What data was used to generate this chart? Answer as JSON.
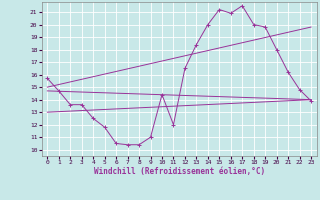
{
  "background_color": "#c8e8e8",
  "grid_color": "#ffffff",
  "line_color": "#993399",
  "marker_color": "#993399",
  "xlabel": "Windchill (Refroidissement éolien,°C)",
  "ylabel_ticks": [
    10,
    11,
    12,
    13,
    14,
    15,
    16,
    17,
    18,
    19,
    20,
    21
  ],
  "xlabel_ticks": [
    0,
    1,
    2,
    3,
    4,
    5,
    6,
    7,
    8,
    9,
    10,
    11,
    12,
    13,
    14,
    15,
    16,
    17,
    18,
    19,
    20,
    21,
    22,
    23
  ],
  "xlim": [
    -0.5,
    23.5
  ],
  "ylim": [
    9.5,
    21.8
  ],
  "series": [
    {
      "x": [
        0,
        1,
        2,
        3,
        4,
        5,
        6,
        7,
        8,
        9,
        10,
        11,
        12,
        13,
        14,
        15,
        16,
        17,
        18,
        19,
        20,
        21,
        22,
        23
      ],
      "y": [
        15.7,
        14.7,
        13.6,
        13.6,
        12.5,
        11.8,
        10.5,
        10.4,
        10.4,
        11.0,
        14.4,
        12.0,
        16.5,
        18.4,
        20.0,
        21.2,
        20.9,
        21.5,
        20.0,
        19.8,
        18.0,
        16.2,
        14.8,
        13.9
      ],
      "marker": true
    },
    {
      "x": [
        0,
        23
      ],
      "y": [
        14.7,
        14.0
      ],
      "marker": false
    },
    {
      "x": [
        0,
        23
      ],
      "y": [
        13.0,
        14.0
      ],
      "marker": false
    },
    {
      "x": [
        0,
        23
      ],
      "y": [
        15.0,
        19.8
      ],
      "marker": false
    }
  ]
}
